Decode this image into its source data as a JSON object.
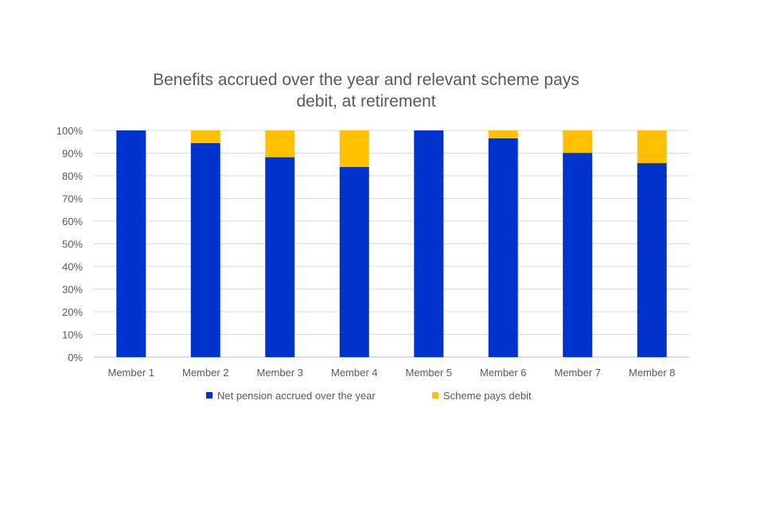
{
  "chart_data": {
    "type": "bar",
    "stacked": true,
    "percent_stacked": true,
    "title_lines": [
      "Benefits accrued over the year and relevant scheme pays",
      "debit, at retirement"
    ],
    "xlabel": "",
    "ylabel": "",
    "ylim": [
      0,
      100
    ],
    "y_tick_labels": [
      "0%",
      "10%",
      "20%",
      "30%",
      "40%",
      "50%",
      "60%",
      "70%",
      "80%",
      "90%",
      "100%"
    ],
    "grid": true,
    "legend_position": "bottom",
    "categories": [
      "Member 1",
      "Member 2",
      "Member 3",
      "Member 4",
      "Member 5",
      "Member 6",
      "Member 7",
      "Member 8"
    ],
    "series": [
      {
        "name": "Net pension accrued over the year",
        "color": "#0033CC",
        "values": [
          100,
          94.4,
          88.2,
          83.9,
          100,
          96.5,
          90.1,
          85.6
        ]
      },
      {
        "name": "Scheme pays debit",
        "color": "#FFC000",
        "values": [
          0,
          5.6,
          11.8,
          16.1,
          0,
          3.5,
          9.9,
          14.4
        ]
      }
    ]
  }
}
